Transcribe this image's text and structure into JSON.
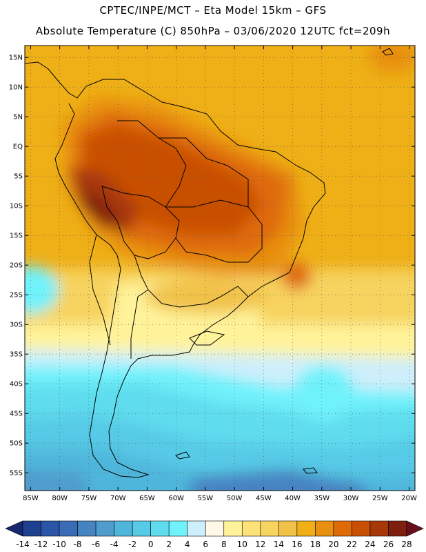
{
  "header": {
    "line1": "CPTEC/INPE/MCT –  Eta Model 15km – GFS",
    "line2": "Absolute Temperature (C) 850hPa – 03/06/2020 12UTC fct=209h"
  },
  "map": {
    "lat_labels": [
      "15N",
      "10N",
      "5N",
      "EQ",
      "5S",
      "10S",
      "15S",
      "20S",
      "25S",
      "30S",
      "35S",
      "40S",
      "45S",
      "50S",
      "55S"
    ],
    "lon_labels": [
      "85W",
      "80W",
      "75W",
      "70W",
      "65W",
      "60W",
      "55W",
      "50W",
      "45W",
      "40W",
      "35W",
      "30W",
      "25W",
      "20W"
    ],
    "grid": true,
    "lon_range": [
      -86,
      -19
    ],
    "lat_range": [
      17,
      -58
    ]
  },
  "colorbar": {
    "labels": [
      "-14",
      "-12",
      "-10",
      "-8",
      "-6",
      "-4",
      "-2",
      "0",
      "2",
      "4",
      "6",
      "8",
      "10",
      "12",
      "14",
      "16",
      "18",
      "20",
      "22",
      "24",
      "26",
      "28"
    ],
    "colors": [
      "#1f3f8f",
      "#2b55a6",
      "#3a6bb5",
      "#4683c1",
      "#4f9ccd",
      "#4fb6db",
      "#57cae6",
      "#5fdcee",
      "#6ff2fb",
      "#cdeffb",
      "#fff8e6",
      "#fff39a",
      "#fde27a",
      "#f7d35f",
      "#f1c248",
      "#eeaf17",
      "#e8900f",
      "#df6a08",
      "#c94f03",
      "#a8370a",
      "#7e1f0e"
    ],
    "arrow_left_color": "#16286f",
    "arrow_right_color": "#6a0e1c"
  }
}
